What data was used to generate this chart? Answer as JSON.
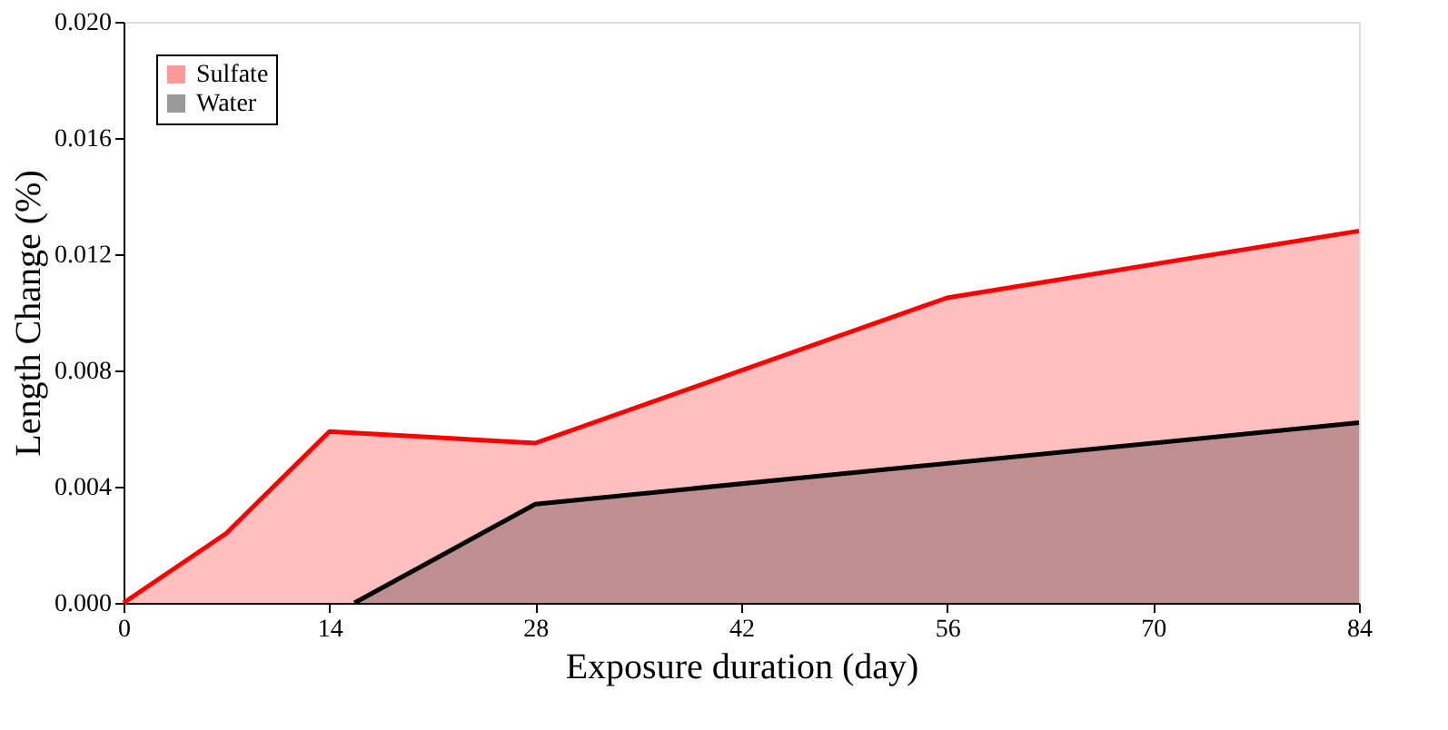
{
  "chart_data": {
    "type": "area",
    "xlabel": "Exposure duration (day)",
    "ylabel": "Length Change (%)",
    "series": [
      {
        "name": "Sulfate",
        "color": "#ff0000",
        "x": [
          0,
          7,
          14,
          28,
          56,
          84
        ],
        "values": [
          0,
          0.0024,
          0.0059,
          0.0055,
          0.0105,
          0.0128
        ]
      },
      {
        "name": "Water",
        "color": "#000000",
        "x": [
          15.7,
          28,
          84
        ],
        "values": [
          0,
          0.0034,
          0.0062
        ]
      }
    ],
    "xlim": [
      0,
      84
    ],
    "xticks": [
      0,
      14,
      28,
      42,
      56,
      70,
      84
    ],
    "ylim": [
      0,
      0.02
    ],
    "yticks": [
      {
        "value": 0,
        "label": "0.000"
      },
      {
        "value": 0.004,
        "label": "0.004"
      },
      {
        "value": 0.008,
        "label": "0.008"
      },
      {
        "value": 0.012,
        "label": "0.012"
      },
      {
        "value": 0.016,
        "label": "0.016"
      },
      {
        "value": 0.02,
        "label": "0.020"
      }
    ],
    "grid": false,
    "legend": "top left"
  }
}
